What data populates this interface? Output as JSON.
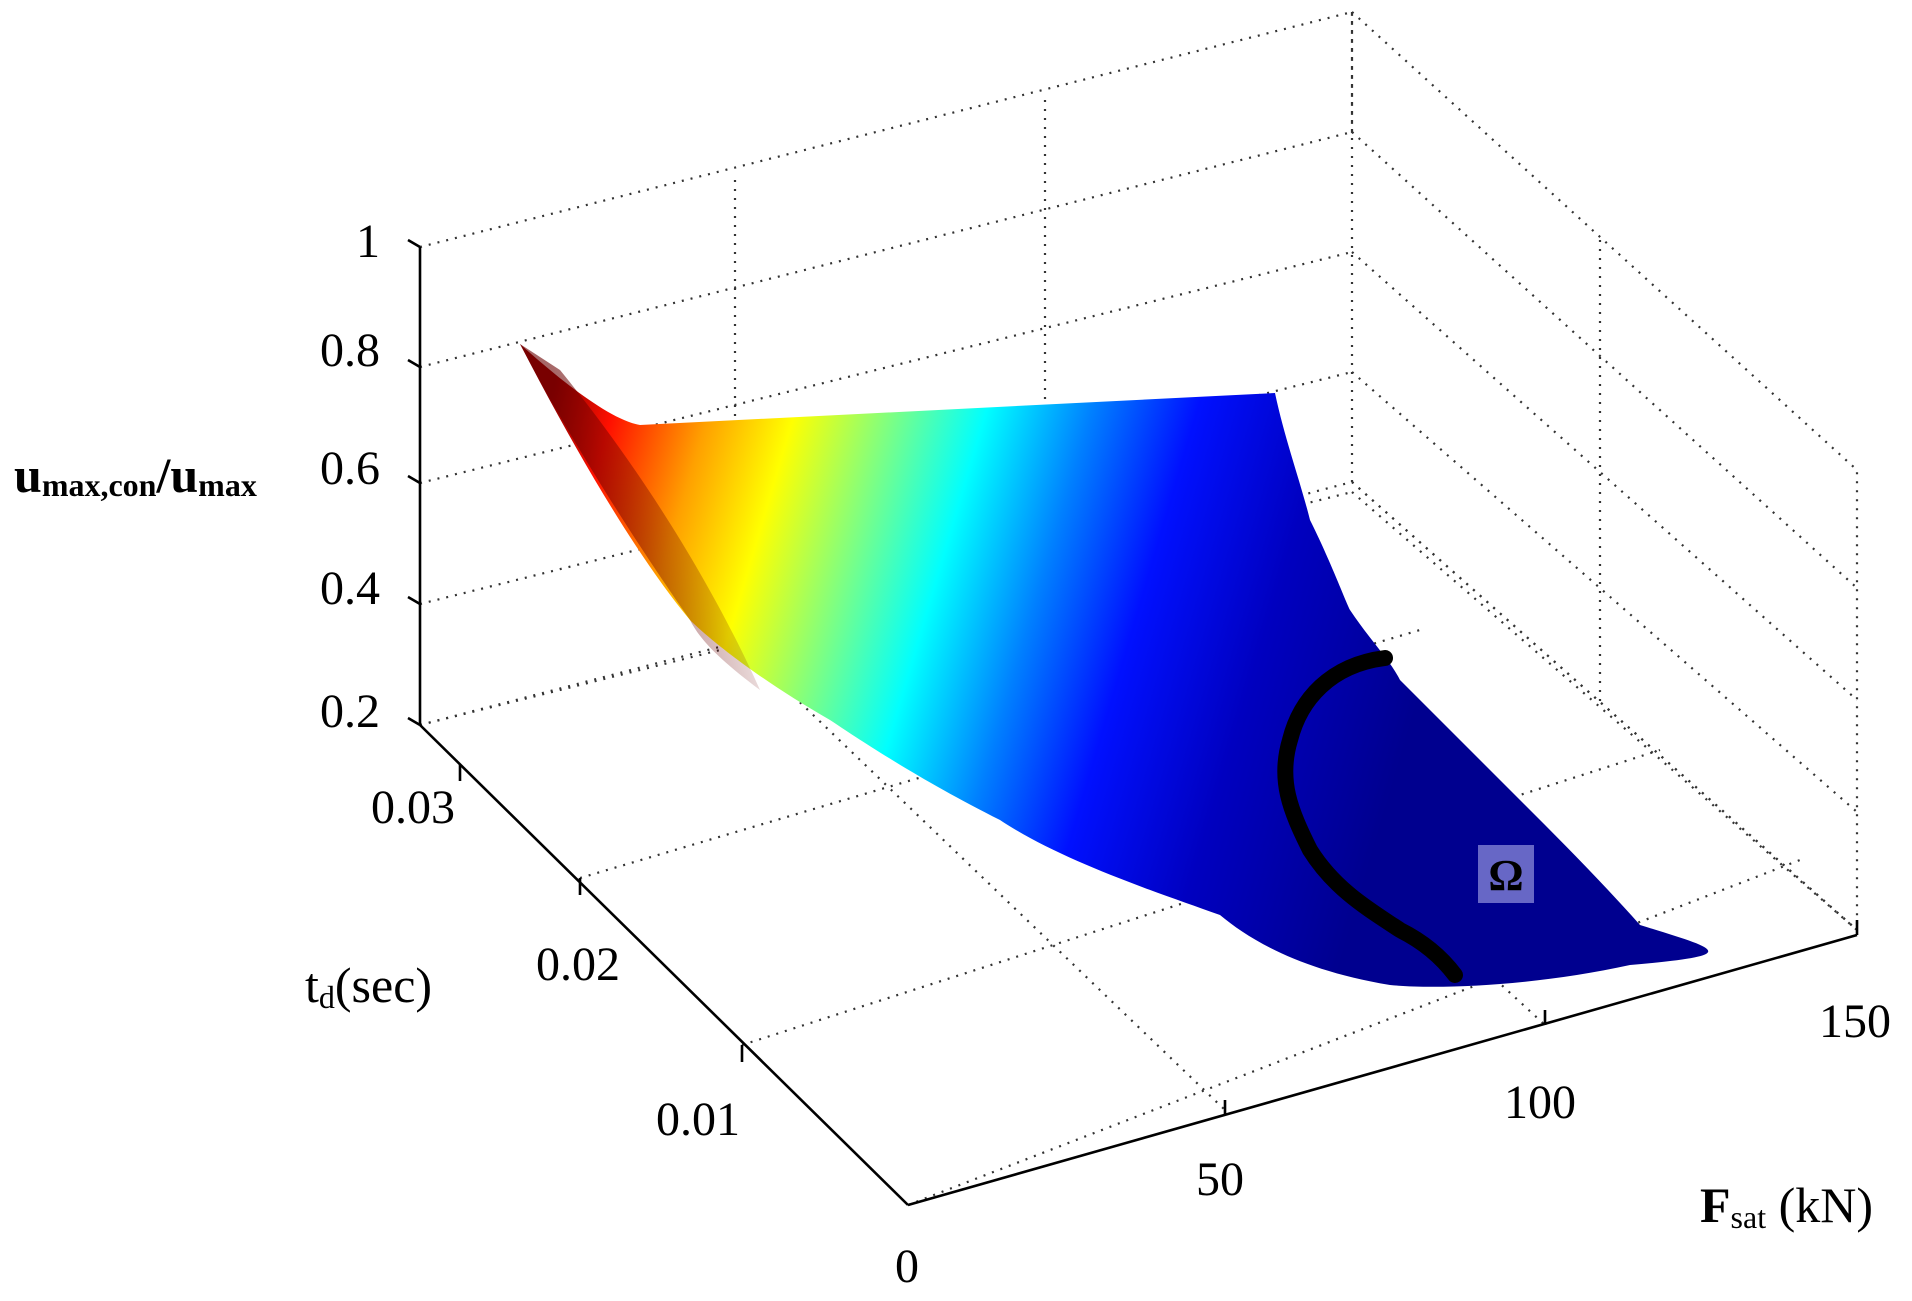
{
  "chart_data": {
    "type": "surface",
    "title": "",
    "xlabel": {
      "main": "F",
      "sub": "sat",
      "unit": " (kN)"
    },
    "ylabel": {
      "main": "t",
      "sub": "d",
      "unit": "(sec)"
    },
    "zlabel": {
      "main1": "u",
      "sub1": "max,con",
      "slash": "/u",
      "sub2": "max"
    },
    "x_ticks": [
      "0",
      "50",
      "100",
      "150"
    ],
    "y_ticks": [
      "0.01",
      "0.02",
      "0.03"
    ],
    "z_ticks": [
      "0.2",
      "0.4",
      "0.6",
      "0.8",
      "1"
    ],
    "xlim": [
      0,
      150
    ],
    "ylim": [
      0,
      0.035
    ],
    "zlim": [
      0.2,
      1
    ],
    "grid": true,
    "colormap": "jet",
    "colormap_low": "#00008f",
    "colormap_high": "#8f0000",
    "region_label": "Ω",
    "region_color": "#000000",
    "surface_points": [
      {
        "F": 3,
        "td": 0.035,
        "u": 0.82
      },
      {
        "F": 8,
        "td": 0.03,
        "u": 0.72
      },
      {
        "F": 80,
        "td": 0.035,
        "u": 0.78
      },
      {
        "F": 95,
        "td": 0.02,
        "u": 0.45
      },
      {
        "F": 120,
        "td": 0.01,
        "u": 0.3
      },
      {
        "F": 105,
        "td": 0.002,
        "u": 0.22
      },
      {
        "F": 60,
        "td": 0.002,
        "u": 0.3
      },
      {
        "F": 15,
        "td": 0.01,
        "u": 0.55
      }
    ]
  }
}
